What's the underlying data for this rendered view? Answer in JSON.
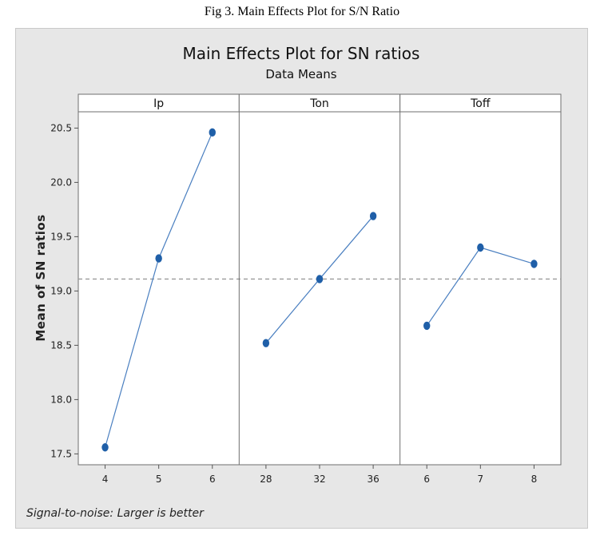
{
  "caption": "Fig 3. Main Effects Plot for S/N Ratio",
  "chart_data": {
    "type": "line",
    "title": "Main Effects Plot for SN ratios",
    "subtitle": "Data Means",
    "ylabel": "Mean of SN ratios",
    "footnote": "Signal-to-noise: Larger is better",
    "ylim": [
      17.4,
      20.65
    ],
    "yticks": [
      "17.5",
      "18.0",
      "18.5",
      "19.0",
      "19.5",
      "20.0",
      "20.5"
    ],
    "reference_line": 19.11,
    "series_color": "#1f5fa8",
    "line_color": "#4a7fc0",
    "reference_color": "#9a9a9a",
    "panels": [
      {
        "name": "Ip",
        "x": [
          "4",
          "5",
          "6"
        ],
        "values": [
          17.56,
          19.3,
          20.46
        ]
      },
      {
        "name": "Ton",
        "x": [
          "28",
          "32",
          "36"
        ],
        "values": [
          18.52,
          19.11,
          19.69
        ]
      },
      {
        "name": "Toff",
        "x": [
          "6",
          "7",
          "8"
        ],
        "values": [
          18.68,
          19.4,
          19.25
        ]
      }
    ]
  }
}
